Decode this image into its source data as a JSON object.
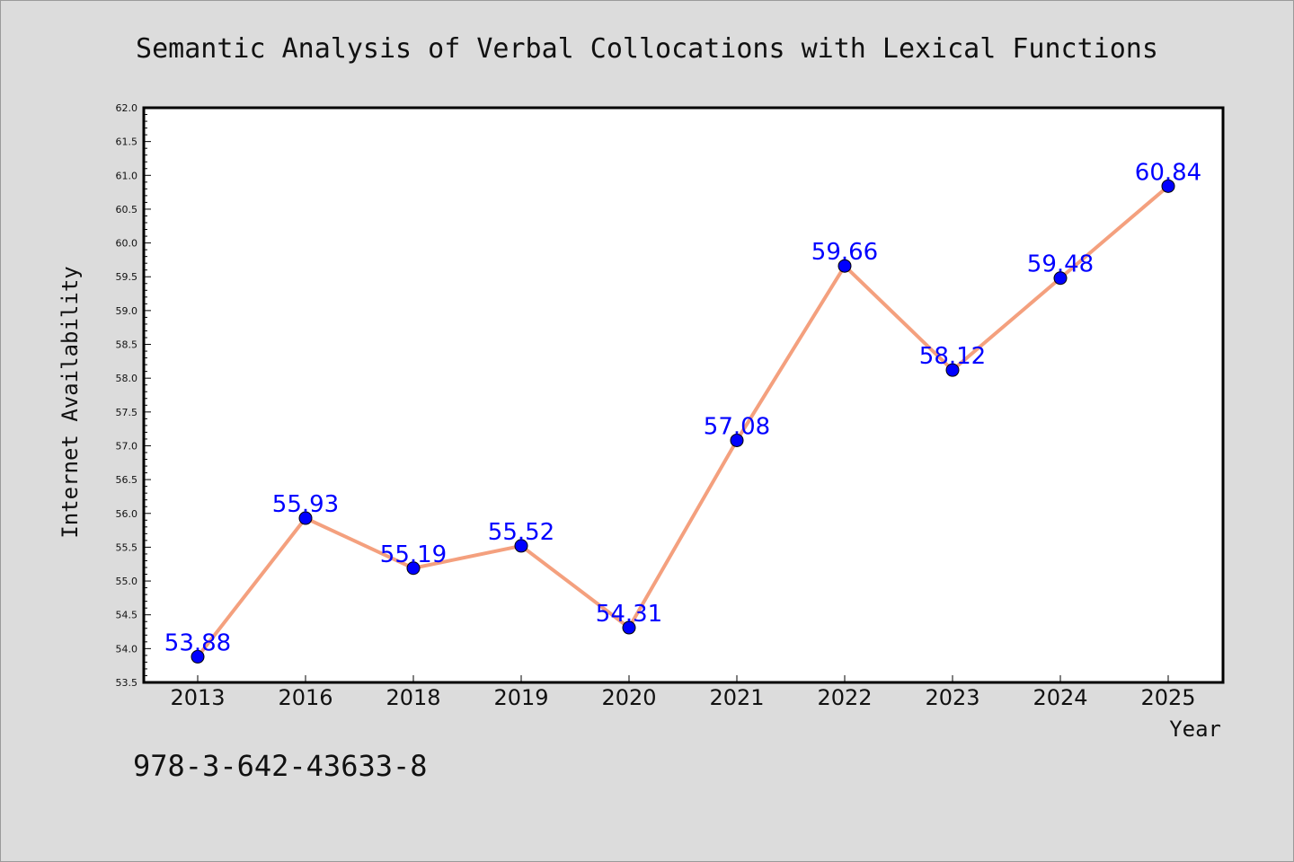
{
  "chart_data": {
    "type": "line",
    "title": "Semantic Analysis of Verbal Collocations with Lexical Functions",
    "xlabel": "Year",
    "ylabel": "Internet Availability",
    "categories": [
      "2013",
      "2016",
      "2018",
      "2019",
      "2020",
      "2021",
      "2022",
      "2023",
      "2024",
      "2025"
    ],
    "series": [
      {
        "values": [
          53.88,
          55.93,
          55.19,
          55.52,
          54.31,
          57.08,
          59.66,
          58.12,
          59.48,
          60.84
        ],
        "data_labels": [
          "53.88",
          "55.93",
          "55.19",
          "55.52",
          "54.31",
          "57.08",
          "59.66",
          "58.12",
          "59.48",
          "60.84"
        ],
        "line_color": "#f4a07e",
        "marker_color": "#0000ff"
      }
    ],
    "ylim": [
      53.5,
      62.0
    ],
    "y_ticks": [
      "53.5",
      "54.0",
      "54.5",
      "55.0",
      "55.5",
      "56.0",
      "56.5",
      "57.0",
      "57.5",
      "58.0",
      "58.5",
      "59.0",
      "59.5",
      "60.0",
      "60.5",
      "61.0",
      "61.5",
      "62.0"
    ],
    "grid": false,
    "legend": "none",
    "label_color": "#0000ff"
  },
  "footnote": "978-3-642-43633-8"
}
